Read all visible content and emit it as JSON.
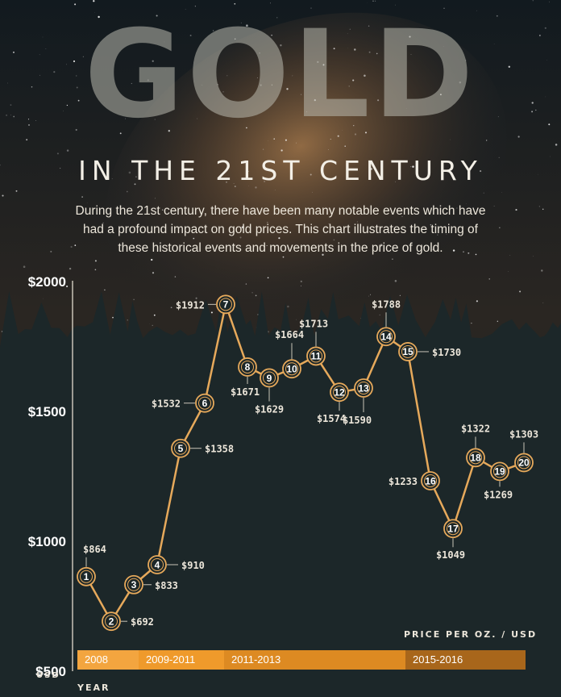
{
  "header": {
    "title": "GOLD",
    "subtitle": "IN THE 21ST CENTURY",
    "description": "During the 21st century, there have been many notable events which have had a profound impact on gold prices. This chart illustrates the timing of these historical events and movements in the price of gold."
  },
  "colors": {
    "line": "#e6a95b",
    "background": "#1c2729",
    "period_1": "#f3a53f",
    "period_2": "#ef9a2b",
    "period_3": "#dd8a22",
    "period_4": "#a8661b"
  },
  "chart_data": {
    "type": "line",
    "ylabel": "PRICE PER OZ. / USD",
    "yunit": "USD",
    "xlabel": "YEAR",
    "ylim": [
      500,
      2000
    ],
    "yticks": [
      {
        "value": 2000,
        "label": "$2000"
      },
      {
        "value": 1500,
        "label": "$1500"
      },
      {
        "value": 1000,
        "label": "$1000"
      },
      {
        "value": 500,
        "label": "$500"
      }
    ],
    "points": [
      {
        "n": "1",
        "value": 864,
        "label": "$864"
      },
      {
        "n": "2",
        "value": 692,
        "label": "$692"
      },
      {
        "n": "3",
        "value": 833,
        "label": "$833"
      },
      {
        "n": "4",
        "value": 910,
        "label": "$910"
      },
      {
        "n": "5",
        "value": 1358,
        "label": "$1358"
      },
      {
        "n": "6",
        "value": 1532,
        "label": "$1532"
      },
      {
        "n": "7",
        "value": 1912,
        "label": "$1912"
      },
      {
        "n": "8",
        "value": 1671,
        "label": "$1671"
      },
      {
        "n": "9",
        "value": 1629,
        "label": "$1629"
      },
      {
        "n": "10",
        "value": 1664,
        "label": "$1664"
      },
      {
        "n": "11",
        "value": 1713,
        "label": "$1713"
      },
      {
        "n": "12",
        "value": 1574,
        "label": "$1574"
      },
      {
        "n": "13",
        "value": 1590,
        "label": "$1590"
      },
      {
        "n": "14",
        "value": 1788,
        "label": "$1788"
      },
      {
        "n": "15",
        "value": 1730,
        "label": "$1730"
      },
      {
        "n": "16",
        "value": 1233,
        "label": "$1233"
      },
      {
        "n": "17",
        "value": 1049,
        "label": "$1049"
      },
      {
        "n": "18",
        "value": 1322,
        "label": "$1322"
      },
      {
        "n": "19",
        "value": 1269,
        "label": "$1269"
      },
      {
        "n": "20",
        "value": 1303,
        "label": "$1303"
      }
    ],
    "periods": [
      {
        "label": "2008",
        "from_point": 1,
        "to_point": 3
      },
      {
        "label": "2009-2011",
        "from_point": 3,
        "to_point": 7
      },
      {
        "label": "2011-2013",
        "from_point": 7,
        "to_point": 16
      },
      {
        "label": "2015-2016",
        "from_point": 16,
        "to_point": 20
      }
    ]
  }
}
